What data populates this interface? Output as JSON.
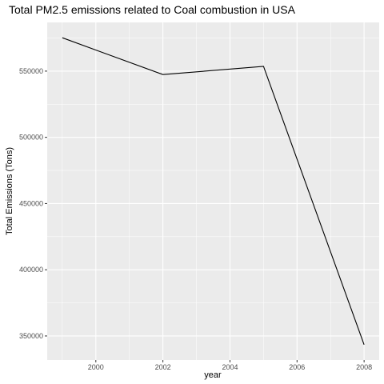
{
  "chart_data": {
    "type": "line",
    "title": "Total PM2.5 emissions related to Coal combustion in USA",
    "xlabel": "year",
    "ylabel": "Total Emissions (Tons)",
    "x": [
      1999,
      2002,
      2005,
      2008
    ],
    "series": [
      {
        "values": [
          575207,
          547380,
          553549,
          343432
        ]
      }
    ],
    "xlim": [
      1998.55,
      2008.45
    ],
    "ylim": [
      331844,
      586795
    ],
    "x_ticks": [
      2000,
      2002,
      2004,
      2006,
      2008
    ],
    "x_tick_labels": [
      "2000",
      "2002",
      "2004",
      "2006",
      "2008"
    ],
    "y_ticks": [
      350000,
      400000,
      450000,
      500000,
      550000
    ],
    "y_tick_labels": [
      "350000",
      "400000",
      "450000",
      "500000",
      "550000"
    ],
    "grid": true,
    "background": "#ebebeb",
    "line_color": "#000000"
  }
}
